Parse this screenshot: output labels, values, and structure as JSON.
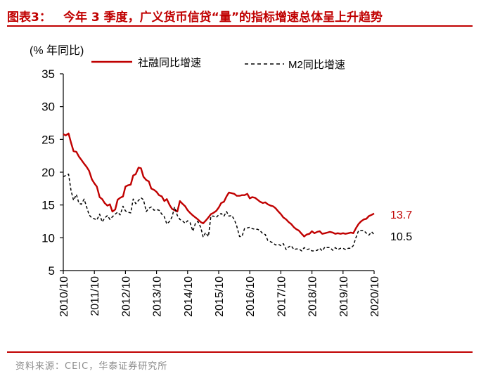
{
  "header": {
    "prefix": "图表3：",
    "title": "今年 3 季度，广义货币信贷“量”的指标增速总体呈上升趋势"
  },
  "source": "资料来源：CEIC，华泰证券研究所",
  "colors": {
    "series1": "#c00000",
    "series2": "#000000",
    "accent": "#c00000"
  },
  "chart_data": {
    "type": "line",
    "title": "",
    "ylabel": "(% 年同比)",
    "xlabel": "",
    "ylim": [
      5,
      35
    ],
    "yticks": [
      5,
      10,
      15,
      20,
      25,
      30,
      35
    ],
    "xlim": [
      2010.75,
      2020.75
    ],
    "xticks": [
      {
        "x": 2010.75,
        "label": "2010/10"
      },
      {
        "x": 2011.75,
        "label": "2011/10"
      },
      {
        "x": 2012.75,
        "label": "2012/10"
      },
      {
        "x": 2013.75,
        "label": "2013/10"
      },
      {
        "x": 2014.75,
        "label": "2014/10"
      },
      {
        "x": 2015.75,
        "label": "2015/10"
      },
      {
        "x": 2016.75,
        "label": "2016/10"
      },
      {
        "x": 2017.75,
        "label": "2017/10"
      },
      {
        "x": 2018.75,
        "label": "2018/10"
      },
      {
        "x": 2019.75,
        "label": "2019/10"
      },
      {
        "x": 2020.75,
        "label": "2020/10"
      }
    ],
    "legend_position": "top",
    "series": [
      {
        "name": "社融同比增速",
        "style": "solid",
        "end_label": "13.7",
        "x": [
          2010.75,
          2010.83,
          2010.92,
          2011.0,
          2011.08,
          2011.17,
          2011.25,
          2011.33,
          2011.42,
          2011.5,
          2011.58,
          2011.67,
          2011.75,
          2011.83,
          2011.92,
          2012.0,
          2012.08,
          2012.17,
          2012.25,
          2012.33,
          2012.42,
          2012.5,
          2012.58,
          2012.67,
          2012.75,
          2012.83,
          2012.92,
          2013.0,
          2013.08,
          2013.17,
          2013.25,
          2013.33,
          2013.42,
          2013.5,
          2013.58,
          2013.67,
          2013.75,
          2013.83,
          2013.92,
          2014.0,
          2014.08,
          2014.17,
          2014.25,
          2014.33,
          2014.42,
          2014.5,
          2014.58,
          2014.67,
          2014.75,
          2014.83,
          2014.92,
          2015.0,
          2015.08,
          2015.17,
          2015.25,
          2015.33,
          2015.42,
          2015.5,
          2015.58,
          2015.67,
          2015.75,
          2015.83,
          2015.92,
          2016.0,
          2016.08,
          2016.17,
          2016.25,
          2016.33,
          2016.42,
          2016.5,
          2016.58,
          2016.67,
          2016.75,
          2016.83,
          2016.92,
          2017.0,
          2017.08,
          2017.17,
          2017.25,
          2017.33,
          2017.42,
          2017.5,
          2017.58,
          2017.67,
          2017.75,
          2017.83,
          2017.92,
          2018.0,
          2018.08,
          2018.17,
          2018.25,
          2018.33,
          2018.42,
          2018.5,
          2018.58,
          2018.67,
          2018.75,
          2018.83,
          2018.92,
          2019.0,
          2019.08,
          2019.17,
          2019.25,
          2019.33,
          2019.42,
          2019.5,
          2019.58,
          2019.67,
          2019.75,
          2019.83,
          2019.92,
          2020.0,
          2020.08,
          2020.17,
          2020.25,
          2020.33,
          2020.42,
          2020.5,
          2020.58,
          2020.67,
          2020.75
        ],
        "y": [
          25.8,
          25.6,
          25.9,
          24.5,
          23.2,
          23.1,
          22.4,
          21.9,
          21.3,
          20.8,
          20.2,
          18.9,
          18.3,
          17.8,
          16.2,
          15.9,
          15.3,
          14.9,
          15.1,
          14.0,
          14.3,
          15.8,
          16.1,
          16.3,
          17.8,
          18.0,
          18.1,
          19.5,
          19.7,
          20.7,
          20.6,
          19.3,
          18.8,
          18.6,
          17.5,
          17.3,
          17.0,
          16.5,
          16.3,
          15.6,
          15.9,
          15.0,
          14.4,
          14.2,
          14.0,
          15.6,
          15.2,
          14.8,
          14.2,
          13.8,
          13.4,
          13.1,
          12.8,
          12.4,
          12.2,
          12.6,
          13.1,
          13.6,
          13.8,
          14.1,
          14.6,
          15.3,
          15.5,
          16.3,
          16.9,
          16.8,
          16.7,
          16.4,
          16.4,
          16.5,
          16.5,
          16.7,
          16.0,
          16.2,
          16.1,
          15.8,
          15.5,
          15.3,
          15.4,
          15.1,
          14.9,
          14.8,
          14.5,
          14.0,
          13.6,
          13.1,
          12.8,
          12.4,
          12.1,
          11.6,
          11.3,
          11.1,
          10.6,
          10.2,
          10.5,
          10.6,
          11.0,
          10.7,
          10.9,
          11.0,
          10.6,
          10.7,
          10.8,
          10.9,
          10.8,
          10.6,
          10.7,
          10.6,
          10.7,
          10.6,
          10.7,
          10.8,
          10.7,
          11.5,
          12.1,
          12.5,
          12.8,
          12.9,
          13.3,
          13.5,
          13.7
        ]
      },
      {
        "name": "M2同比增速",
        "style": "dashed",
        "end_label": "10.5",
        "x": [
          2010.75,
          2010.83,
          2010.92,
          2011.0,
          2011.08,
          2011.17,
          2011.25,
          2011.33,
          2011.42,
          2011.5,
          2011.58,
          2011.67,
          2011.75,
          2011.83,
          2011.92,
          2012.0,
          2012.08,
          2012.17,
          2012.25,
          2012.33,
          2012.42,
          2012.5,
          2012.58,
          2012.67,
          2012.75,
          2012.83,
          2012.92,
          2013.0,
          2013.08,
          2013.17,
          2013.25,
          2013.33,
          2013.42,
          2013.5,
          2013.58,
          2013.67,
          2013.75,
          2013.83,
          2013.92,
          2014.0,
          2014.08,
          2014.17,
          2014.25,
          2014.33,
          2014.42,
          2014.5,
          2014.58,
          2014.67,
          2014.75,
          2014.83,
          2014.92,
          2015.0,
          2015.08,
          2015.17,
          2015.25,
          2015.33,
          2015.42,
          2015.5,
          2015.58,
          2015.67,
          2015.75,
          2015.83,
          2015.92,
          2016.0,
          2016.08,
          2016.17,
          2016.25,
          2016.33,
          2016.42,
          2016.5,
          2016.58,
          2016.67,
          2016.75,
          2016.83,
          2016.92,
          2017.0,
          2017.08,
          2017.17,
          2017.25,
          2017.33,
          2017.42,
          2017.5,
          2017.58,
          2017.67,
          2017.75,
          2017.83,
          2017.92,
          2018.0,
          2018.08,
          2018.17,
          2018.25,
          2018.33,
          2018.42,
          2018.5,
          2018.58,
          2018.67,
          2018.75,
          2018.83,
          2018.92,
          2019.0,
          2019.08,
          2019.17,
          2019.25,
          2019.33,
          2019.42,
          2019.5,
          2019.58,
          2019.67,
          2019.75,
          2019.83,
          2019.92,
          2020.0,
          2020.08,
          2020.17,
          2020.25,
          2020.33,
          2020.42,
          2020.5,
          2020.58,
          2020.67,
          2020.75
        ],
        "y": [
          19.3,
          19.5,
          19.7,
          17.2,
          15.7,
          16.6,
          15.3,
          15.1,
          15.9,
          14.7,
          13.5,
          13.0,
          12.9,
          12.7,
          13.6,
          12.4,
          13.0,
          13.4,
          12.8,
          13.2,
          13.6,
          13.9,
          13.5,
          14.8,
          14.1,
          13.9,
          13.8,
          15.9,
          15.2,
          15.7,
          16.1,
          15.8,
          14.0,
          14.5,
          14.7,
          14.2,
          14.3,
          14.2,
          13.6,
          13.2,
          12.1,
          12.5,
          13.2,
          14.7,
          13.4,
          12.8,
          12.6,
          12.2,
          12.6,
          12.3,
          11.0,
          12.2,
          12.5,
          11.6,
          10.1,
          10.8,
          10.2,
          13.3,
          13.3,
          13.1,
          13.5,
          13.7,
          13.3,
          14.0,
          13.3,
          13.4,
          12.8,
          11.8,
          10.2,
          10.2,
          11.4,
          11.5,
          11.6,
          11.4,
          11.3,
          11.3,
          11.1,
          10.6,
          10.5,
          9.6,
          9.4,
          9.2,
          8.9,
          9.0,
          8.8,
          9.1,
          8.2,
          8.6,
          8.8,
          8.2,
          8.3,
          8.3,
          8.0,
          8.5,
          8.2,
          8.3,
          8.0,
          8.0,
          8.1,
          8.4,
          8.0,
          8.6,
          8.5,
          8.5,
          8.1,
          8.5,
          8.2,
          8.4,
          8.4,
          8.2,
          8.4,
          8.4,
          8.8,
          10.1,
          11.1,
          11.1,
          11.1,
          10.7,
          10.4,
          10.9,
          10.5
        ]
      }
    ]
  }
}
